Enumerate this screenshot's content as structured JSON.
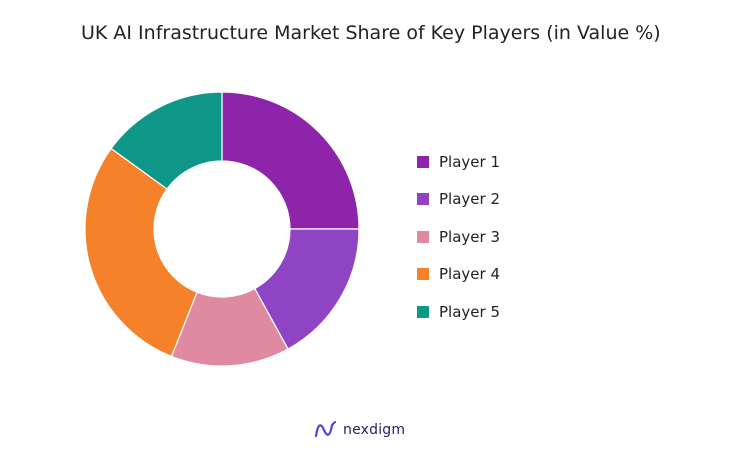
{
  "chart_data": {
    "type": "pie",
    "title": "UK AI Infrastructure Market Share of Key Players (in Value %)",
    "donut": true,
    "categories": [
      "Player 1",
      "Player 2",
      "Player 3",
      "Player 4",
      "Player 5"
    ],
    "values": [
      25,
      17,
      14,
      29,
      15
    ],
    "unit": "%",
    "colors": [
      "#8e24aa",
      "#8f44c4",
      "#e08aa2",
      "#f5822a",
      "#0e9787"
    ],
    "legend": "right"
  },
  "brand": {
    "name": "nexdigm",
    "logo_icon": "nexdigm-logo-icon"
  }
}
